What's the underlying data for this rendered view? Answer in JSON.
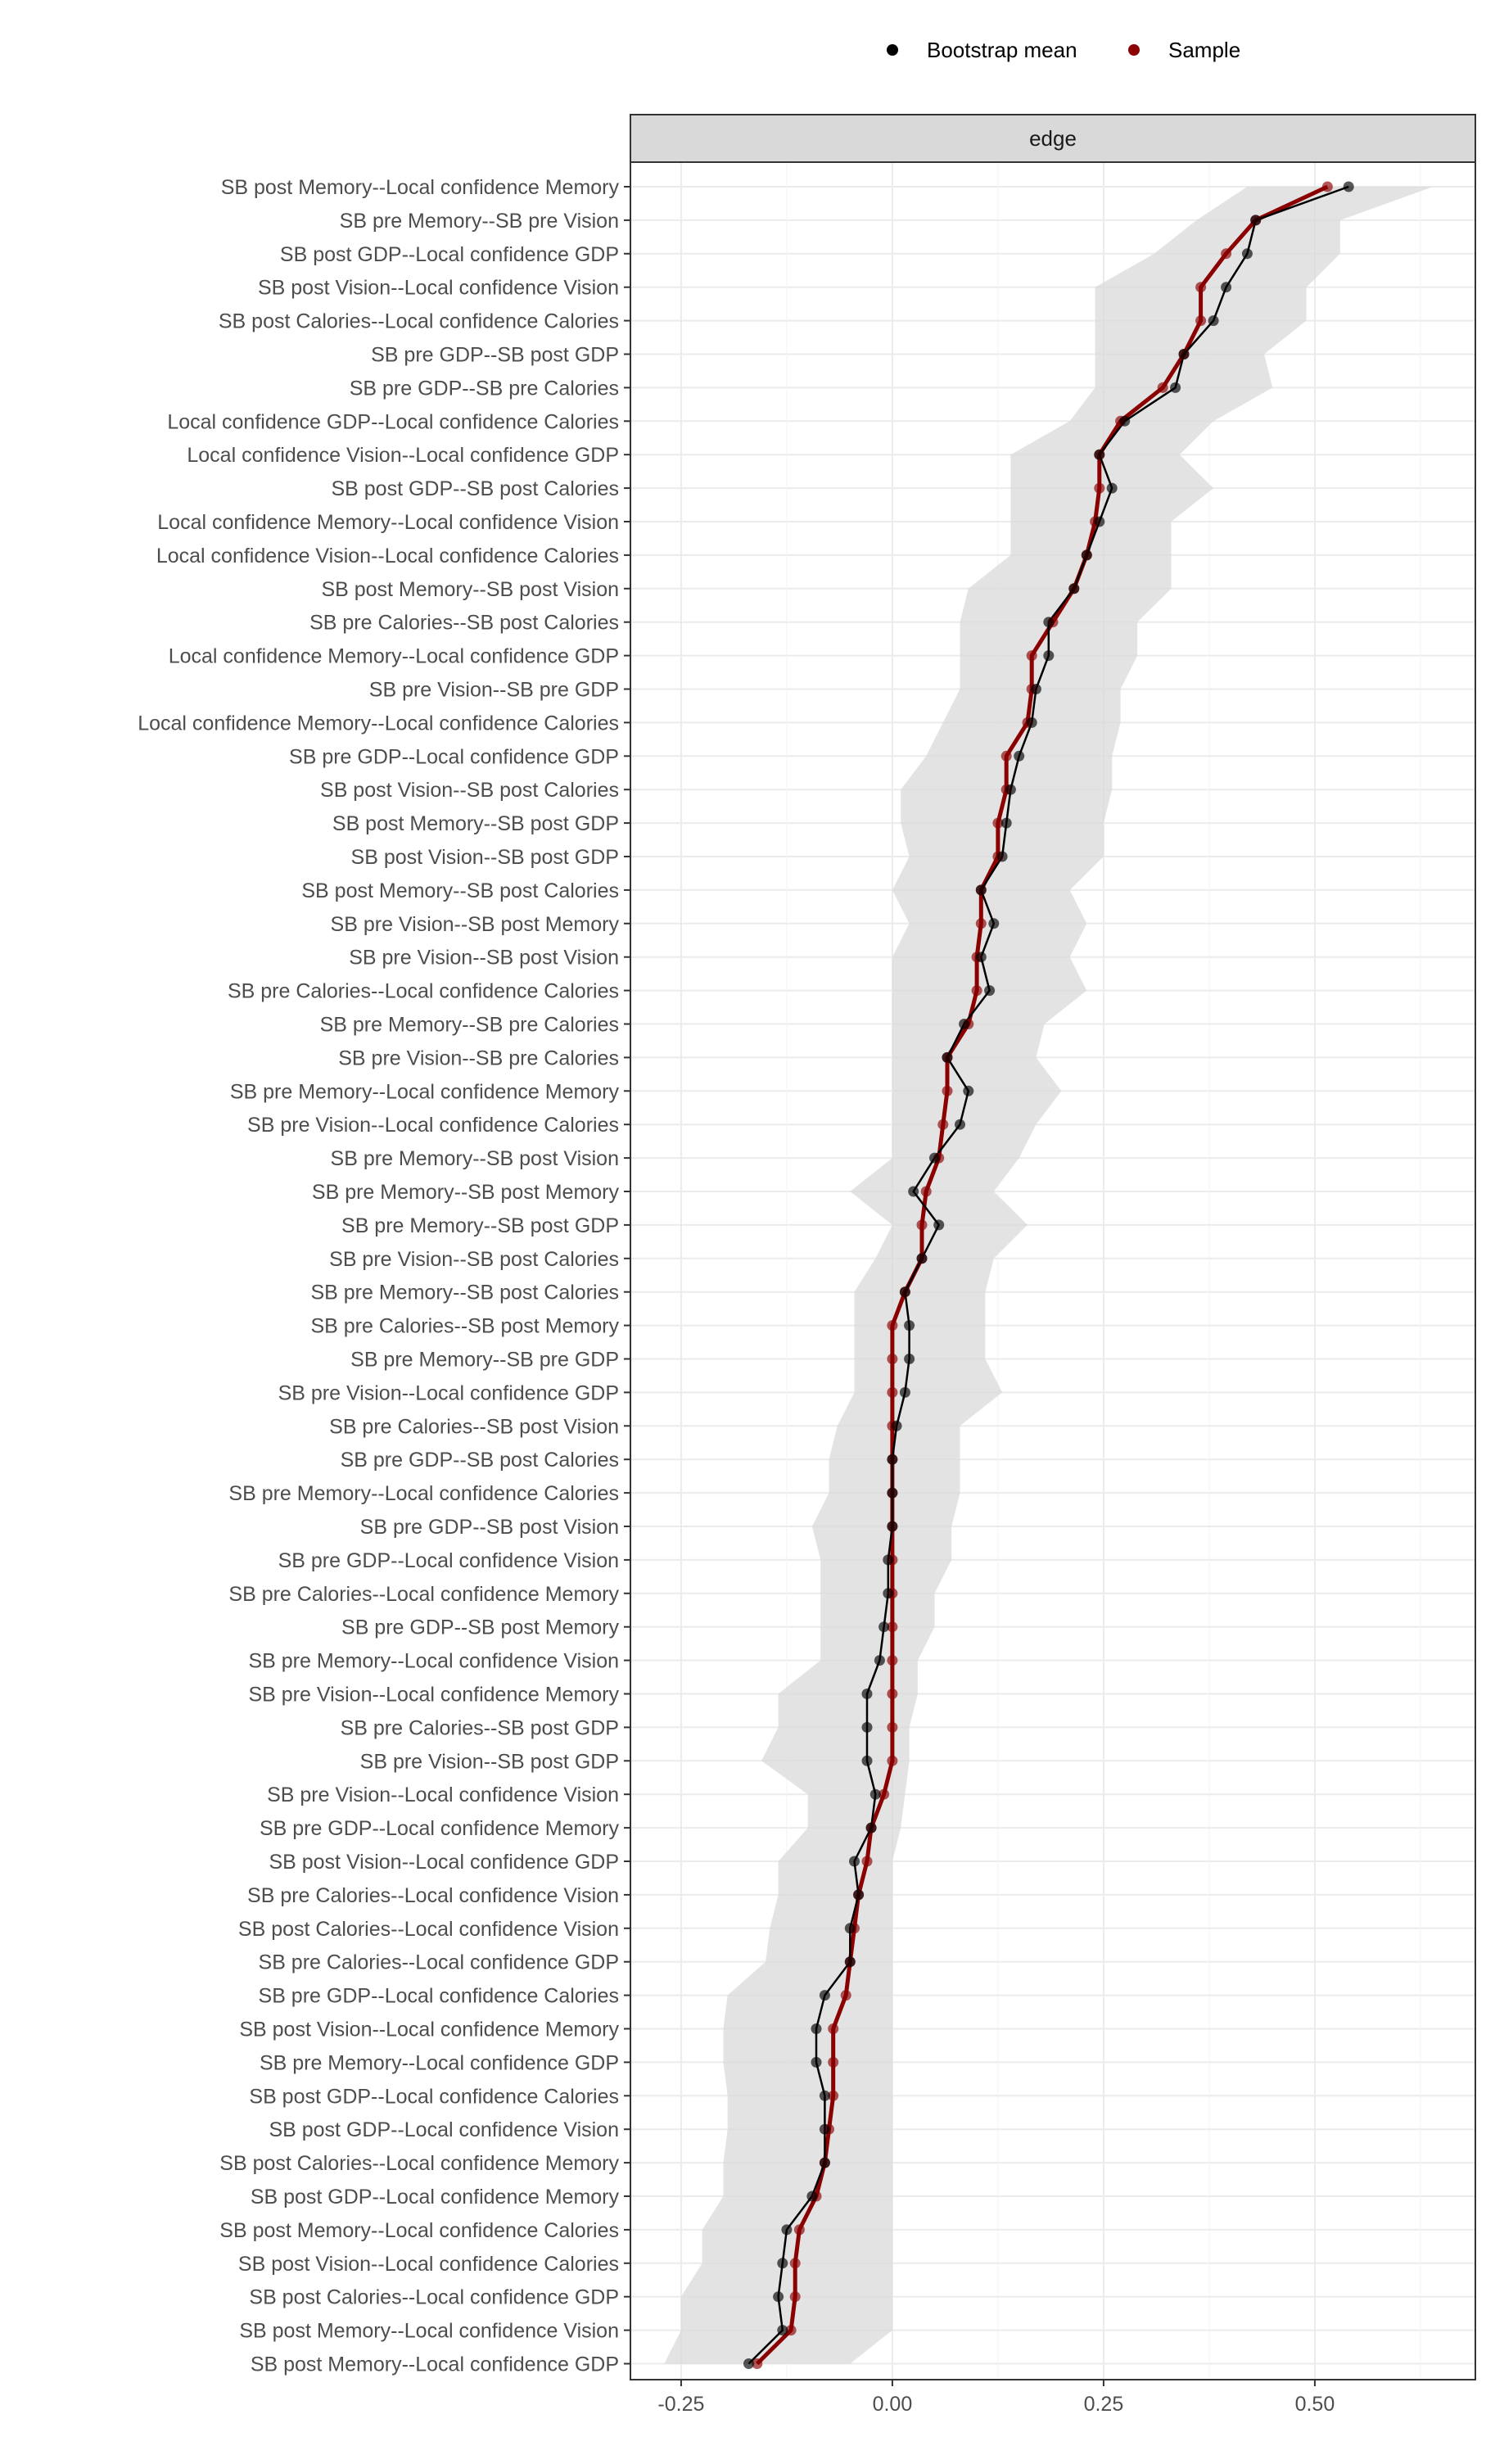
{
  "chart_data": {
    "type": "line",
    "orientation": "horizontal",
    "facet_label": "edge",
    "legend": {
      "placement": "top",
      "entries": [
        {
          "name": "Bootstrap mean",
          "color": "#000000"
        },
        {
          "name": "Sample",
          "color": "#8b0000"
        }
      ]
    },
    "xlim": [
      -0.31,
      0.69
    ],
    "x_ticks": [
      -0.25,
      0.0,
      0.25,
      0.5
    ],
    "x_tick_labels": [
      "-0.25",
      "0.00",
      "0.25",
      "0.50"
    ],
    "grid": true,
    "ci_band_color": "#d9d9d9",
    "categories": [
      "SB post Memory--Local confidence Memory",
      "SB pre Memory--SB pre Vision",
      "SB post GDP--Local confidence GDP",
      "SB post Vision--Local confidence Vision",
      "SB post Calories--Local confidence Calories",
      "SB pre GDP--SB post GDP",
      "SB pre GDP--SB pre Calories",
      "Local confidence GDP--Local confidence Calories",
      "Local confidence Vision--Local confidence GDP",
      "SB post GDP--SB post Calories",
      "Local confidence Memory--Local confidence Vision",
      "Local confidence Vision--Local confidence Calories",
      "SB post Memory--SB post Vision",
      "SB pre Calories--SB post Calories",
      "Local confidence Memory--Local confidence GDP",
      "SB pre Vision--SB pre GDP",
      "Local confidence Memory--Local confidence Calories",
      "SB pre GDP--Local confidence GDP",
      "SB post Vision--SB post Calories",
      "SB post Memory--SB post GDP",
      "SB post Vision--SB post GDP",
      "SB post Memory--SB post Calories",
      "SB pre Vision--SB post Memory",
      "SB pre Vision--SB post Vision",
      "SB pre Calories--Local confidence Calories",
      "SB pre Memory--SB pre Calories",
      "SB pre Vision--SB pre Calories",
      "SB pre Memory--Local confidence Memory",
      "SB pre Vision--Local confidence Calories",
      "SB pre Memory--SB post Vision",
      "SB pre Memory--SB post Memory",
      "SB pre Memory--SB post GDP",
      "SB pre Vision--SB post Calories",
      "SB pre Memory--SB post Calories",
      "SB pre Calories--SB post Memory",
      "SB pre Memory--SB pre GDP",
      "SB pre Vision--Local confidence GDP",
      "SB pre Calories--SB post Vision",
      "SB pre GDP--SB post Calories",
      "SB pre Memory--Local confidence Calories",
      "SB pre GDP--SB post Vision",
      "SB pre GDP--Local confidence Vision",
      "SB pre Calories--Local confidence Memory",
      "SB pre GDP--SB post Memory",
      "SB pre Memory--Local confidence Vision",
      "SB pre Vision--Local confidence Memory",
      "SB pre Calories--SB post GDP",
      "SB pre Vision--SB post GDP",
      "SB pre Vision--Local confidence Vision",
      "SB pre GDP--Local confidence Memory",
      "SB post Vision--Local confidence GDP",
      "SB pre Calories--Local confidence Vision",
      "SB post Calories--Local confidence Vision",
      "SB pre Calories--Local confidence GDP",
      "SB pre GDP--Local confidence Calories",
      "SB post Vision--Local confidence Memory",
      "SB pre Memory--Local confidence GDP",
      "SB post GDP--Local confidence Calories",
      "SB post GDP--Local confidence Vision",
      "SB post Calories--Local confidence Memory",
      "SB post GDP--Local confidence Memory",
      "SB post Memory--Local confidence Calories",
      "SB post Vision--Local confidence Calories",
      "SB post Calories--Local confidence GDP",
      "SB post Memory--Local confidence Vision",
      "SB post Memory--Local confidence GDP"
    ],
    "series": [
      {
        "name": "Bootstrap mean",
        "color": "#000000",
        "values": [
          0.54,
          0.43,
          0.42,
          0.395,
          0.38,
          0.345,
          0.335,
          0.275,
          0.245,
          0.26,
          0.245,
          0.23,
          0.215,
          0.185,
          0.185,
          0.17,
          0.165,
          0.15,
          0.14,
          0.135,
          0.13,
          0.105,
          0.12,
          0.105,
          0.115,
          0.085,
          0.065,
          0.09,
          0.08,
          0.05,
          0.025,
          0.055,
          0.035,
          0.015,
          0.02,
          0.02,
          0.015,
          0.005,
          0.0,
          0.0,
          0.0,
          -0.005,
          -0.005,
          -0.01,
          -0.015,
          -0.03,
          -0.03,
          -0.03,
          -0.02,
          -0.025,
          -0.045,
          -0.04,
          -0.05,
          -0.05,
          -0.08,
          -0.09,
          -0.09,
          -0.08,
          -0.08,
          -0.08,
          -0.095,
          -0.125,
          -0.13,
          -0.135,
          -0.13,
          -0.17
        ]
      },
      {
        "name": "Sample",
        "color": "#8b0000",
        "values": [
          0.515,
          0.43,
          0.395,
          0.365,
          0.365,
          0.345,
          0.32,
          0.27,
          0.245,
          0.245,
          0.24,
          0.23,
          0.215,
          0.19,
          0.165,
          0.165,
          0.16,
          0.135,
          0.135,
          0.125,
          0.125,
          0.105,
          0.105,
          0.1,
          0.1,
          0.09,
          0.065,
          0.065,
          0.06,
          0.055,
          0.04,
          0.035,
          0.035,
          0.015,
          0.0,
          0.0,
          0.0,
          0.0,
          0.0,
          0.0,
          0.0,
          0.0,
          0.0,
          0.0,
          0.0,
          0.0,
          0.0,
          0.0,
          -0.01,
          -0.025,
          -0.03,
          -0.04,
          -0.045,
          -0.05,
          -0.055,
          -0.07,
          -0.07,
          -0.07,
          -0.075,
          -0.08,
          -0.09,
          -0.11,
          -0.115,
          -0.115,
          -0.12,
          -0.16
        ]
      }
    ],
    "ci_lower": [
      0.42,
      0.36,
      0.31,
      0.24,
      0.24,
      0.24,
      0.24,
      0.21,
      0.14,
      0.14,
      0.14,
      0.14,
      0.09,
      0.08,
      0.08,
      0.08,
      0.06,
      0.04,
      0.01,
      0.01,
      0.02,
      0.0,
      0.02,
      0.0,
      0.0,
      0.0,
      0.0,
      0.0,
      0.0,
      0.0,
      -0.05,
      0.0,
      -0.02,
      -0.045,
      -0.045,
      -0.045,
      -0.045,
      -0.065,
      -0.075,
      -0.075,
      -0.095,
      -0.085,
      -0.085,
      -0.085,
      -0.085,
      -0.135,
      -0.135,
      -0.155,
      -0.1,
      -0.1,
      -0.135,
      -0.135,
      -0.145,
      -0.15,
      -0.195,
      -0.2,
      -0.2,
      -0.195,
      -0.195,
      -0.2,
      -0.2,
      -0.225,
      -0.225,
      -0.25,
      -0.25,
      -0.27
    ],
    "ci_upper": [
      0.64,
      0.53,
      0.53,
      0.49,
      0.49,
      0.44,
      0.45,
      0.38,
      0.34,
      0.38,
      0.33,
      0.33,
      0.33,
      0.29,
      0.29,
      0.27,
      0.27,
      0.26,
      0.26,
      0.25,
      0.25,
      0.21,
      0.23,
      0.21,
      0.23,
      0.18,
      0.17,
      0.2,
      0.17,
      0.15,
      0.12,
      0.16,
      0.12,
      0.11,
      0.11,
      0.11,
      0.13,
      0.08,
      0.08,
      0.08,
      0.07,
      0.07,
      0.05,
      0.05,
      0.03,
      0.03,
      0.02,
      0.02,
      0.015,
      0.01,
      0.0,
      0.0,
      0.0,
      0.0,
      0.0,
      0.0,
      0.0,
      0.0,
      0.0,
      0.0,
      0.0,
      0.0,
      0.0,
      0.0,
      0.0,
      -0.05
    ]
  }
}
